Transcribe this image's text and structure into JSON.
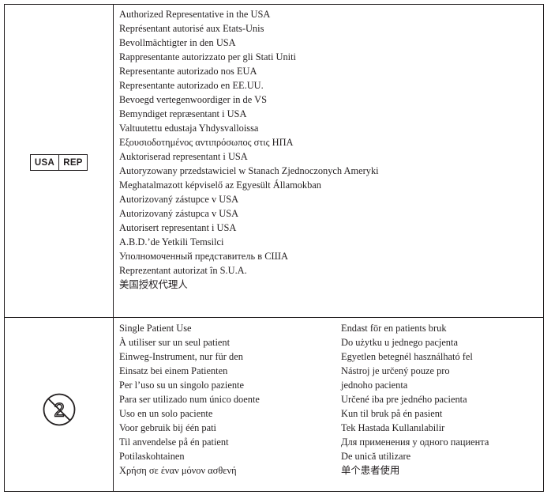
{
  "authorized_rep": {
    "symbol": {
      "left": "USA",
      "right": "REP"
    },
    "lines": [
      "Authorized Representative in the USA",
      "Représentant autorisé aux Etats-Unis",
      "Bevollmächtigter in den USA",
      "Rappresentante autorizzato per gli Stati Uniti",
      "Representante autorizado nos EUA",
      "Representante autorizado en EE.UU.",
      "Bevoegd vertegenwoordiger in de VS",
      "Bemyndiget repræsentant i USA",
      "Valtuutettu edustaja Yhdysvalloissa",
      "Εξουσιοδοτημένος αντιπρόσωπος στις ΗΠΑ",
      "Auktoriserad representant i USA",
      "Autoryzowany przedstawiciel w Stanach Zjednoczonych Ameryki",
      "Meghatalmazott képviselő az Egyesült Államokban",
      "Autorizovaný zástupce v USA",
      "Autorizovaný zástupca v USA",
      "Autorisert representant i USA",
      "A.B.D.’de Yetkili Temsilci",
      "Уполномоченный представитель в США",
      "Reprezentant autorizat în S.U.A.",
      "美国授权代理人"
    ]
  },
  "single_patient_use": {
    "symbol_digit": "2",
    "left_lines": [
      "Single Patient Use",
      "À utiliser sur un seul patient",
      "Einweg-Instrument, nur für den",
      "Einsatz bei einem Patienten",
      "Per l’uso su un singolo paziente",
      "Para ser utilizado num único doente",
      "Uso en un solo paciente",
      "Voor gebruik bij één pati",
      "Til anvendelse på én patient",
      "Potilaskohtainen",
      "Χρήση σε έναν μόνον ασθενή"
    ],
    "right_lines": [
      "Endast för en patients bruk",
      "Do użytku u jednego pacjenta",
      "Egyetlen betegnél használható fel",
      "Nástroj je určený pouze pro",
      "jednoho pacienta",
      "Určené iba pre jedného pacienta",
      "Kun til bruk på én pasient",
      "Tek Hastada Kullanılabilir",
      "Для применения у одного пациента",
      "De unică utilizare",
      "单个患者使用"
    ]
  }
}
